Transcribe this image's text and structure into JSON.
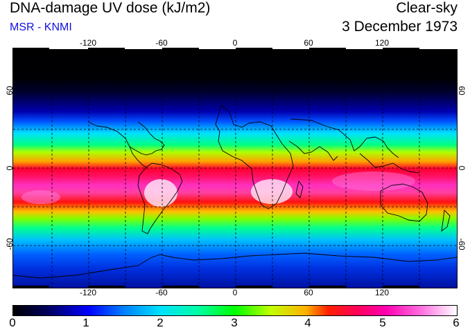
{
  "header": {
    "title": "DNA-damage UV dose (kJ/m2)",
    "source": "MSR - KNMI",
    "sky_condition": "Clear-sky",
    "date": "3 December 1973"
  },
  "map": {
    "lon_labels": [
      "-120",
      "-60",
      "0",
      "60",
      "120"
    ],
    "lat_labels": [
      "60",
      "0",
      "-60"
    ]
  },
  "colorbar": {
    "min": 0,
    "max": 6,
    "tick_labels": [
      "0",
      "1",
      "2",
      "3",
      "4",
      "5",
      "6"
    ]
  }
}
